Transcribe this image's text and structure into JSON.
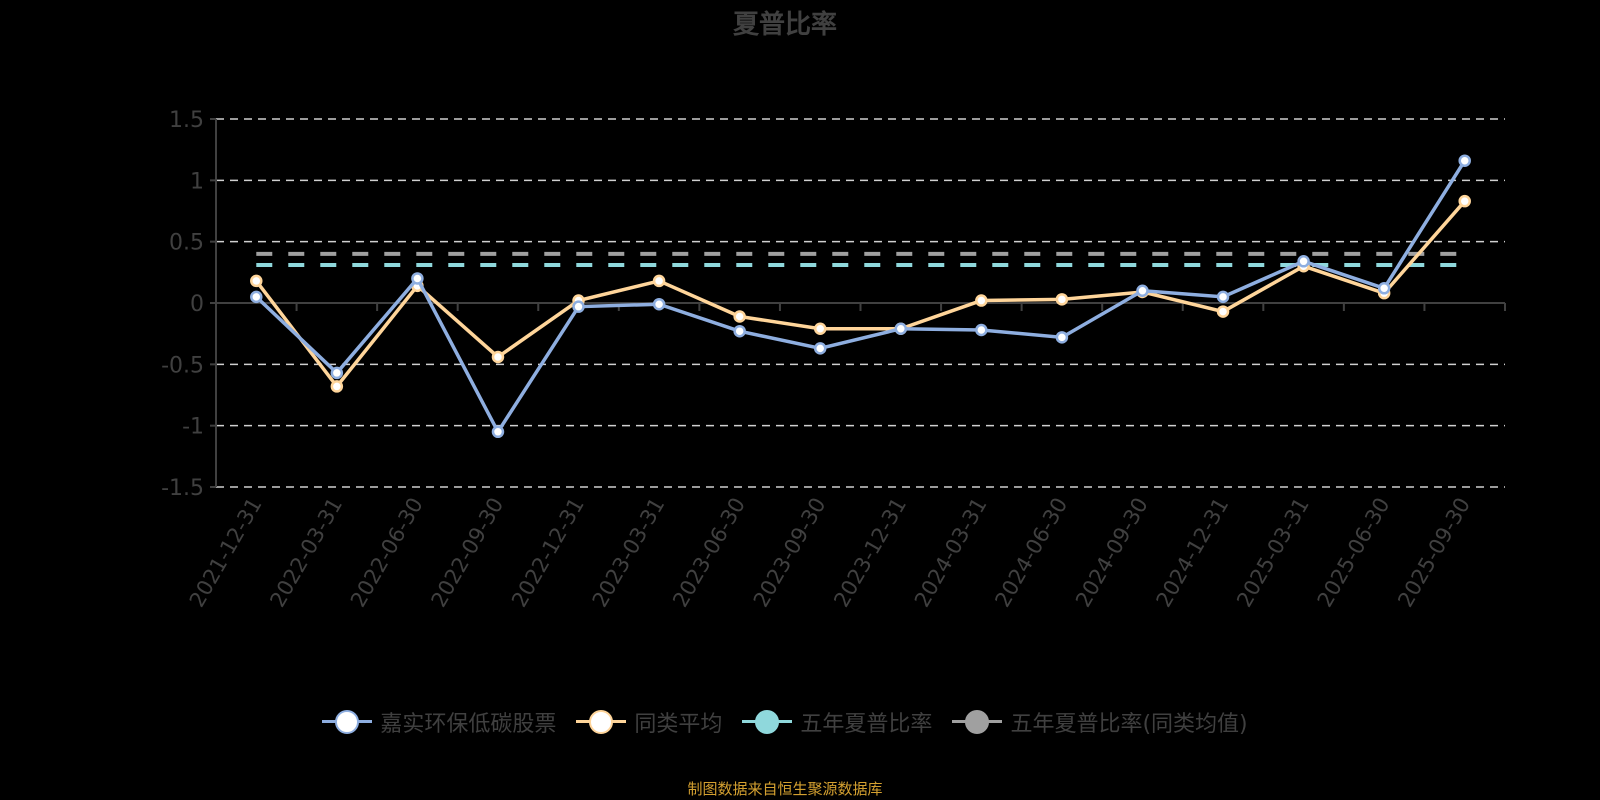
{
  "title": "夏普比率",
  "source_note": "制图数据来自恒生聚源数据库",
  "legend": [
    {
      "label": "嘉实环保低碳股票",
      "color": "#8eaee0",
      "fill": "#ffffff"
    },
    {
      "label": "同类平均",
      "color": "#ffd59a",
      "fill": "#ffffff"
    },
    {
      "label": "五年夏普比率",
      "color": "#8fd8dc",
      "fill": "#8fd8dc"
    },
    {
      "label": "五年夏普比率(同类均值)",
      "color": "#a0a0a0",
      "fill": "#a0a0a0"
    }
  ],
  "chart_data": {
    "type": "line",
    "title": "夏普比率",
    "xlabel": "",
    "ylabel": "",
    "ylim": [
      -1.5,
      1.5
    ],
    "yticks": [
      1.5,
      1,
      0.5,
      0,
      -0.5,
      -1,
      -1.5
    ],
    "yticklabels": [
      "1.5",
      "1",
      "0.5",
      "0",
      "-0.5",
      "-1",
      "-1.5"
    ],
    "grid": true,
    "legend_position": "bottom",
    "categories": [
      "2021-12-31",
      "2022-03-31",
      "2022-06-30",
      "2022-09-30",
      "2022-12-31",
      "2023-03-31",
      "2023-06-30",
      "2023-09-30",
      "2023-12-31",
      "2024-03-31",
      "2024-06-30",
      "2024-09-30",
      "2024-12-31",
      "2025-03-31",
      "2025-06-30",
      "2025-09-30"
    ],
    "series": [
      {
        "name": "嘉实环保低碳股票",
        "color": "#8eaee0",
        "values": [
          0.05,
          -0.57,
          0.2,
          -1.05,
          -0.03,
          -0.01,
          -0.23,
          -0.37,
          -0.21,
          -0.22,
          -0.28,
          0.1,
          0.05,
          0.34,
          0.12,
          1.16
        ]
      },
      {
        "name": "同类平均",
        "color": "#ffd59a",
        "values": [
          0.18,
          -0.68,
          0.14,
          -0.44,
          0.02,
          0.18,
          -0.11,
          -0.21,
          -0.21,
          0.02,
          0.03,
          0.09,
          -0.07,
          0.3,
          0.08,
          0.83
        ]
      },
      {
        "name": "五年夏普比率",
        "color": "#8fd8dc",
        "constant": 0.31
      },
      {
        "name": "五年夏普比率(同类均值)",
        "color": "#a0a0a0",
        "constant": 0.4
      }
    ]
  }
}
